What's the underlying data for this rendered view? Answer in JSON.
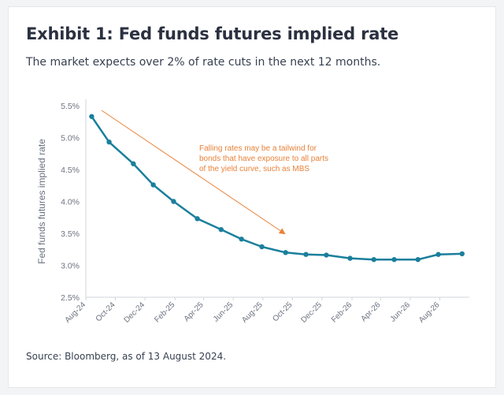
{
  "title": "Exhibit 1: Fed funds futures implied rate",
  "subtitle": "The market expects over 2% of rate cuts in the next 12 months.",
  "source": "Source: Bloomberg, as of 13 August 2024.",
  "colors": {
    "line": "#1a7f9c",
    "annotation": "#e8823a",
    "axis": "#d1d5db"
  },
  "chart_data": {
    "type": "line",
    "ylabel": "Fed funds futures implied rate",
    "ylim": [
      2.5,
      5.5
    ],
    "yticks": [
      2.5,
      3.0,
      3.5,
      4.0,
      4.5,
      5.0,
      5.5
    ],
    "ytick_labels": [
      "2.5%",
      "3.0%",
      "3.5%",
      "4.0%",
      "4.5%",
      "5.0%",
      "5.5%"
    ],
    "x_range": [
      "2024-08-01",
      "2026-10-01"
    ],
    "xticks": [
      "2024-08-01",
      "2024-10-01",
      "2024-12-01",
      "2025-02-01",
      "2025-04-01",
      "2025-06-01",
      "2025-08-01",
      "2025-10-01",
      "2025-12-01",
      "2026-02-01",
      "2026-04-01",
      "2026-06-01",
      "2026-08-01"
    ],
    "xtick_labels": [
      "Aug-24",
      "Oct-24",
      "Dec-24",
      "Feb-25",
      "Apr-25",
      "Jun-25",
      "Aug-25",
      "Oct-25",
      "Dec-25",
      "Feb-26",
      "Apr-26",
      "Jun-26",
      "Aug-26"
    ],
    "grid": false,
    "series": [
      {
        "x": [
          "2024-08-13",
          "2024-09-18",
          "2024-11-07",
          "2024-12-18",
          "2025-01-29",
          "2025-03-19",
          "2025-05-07",
          "2025-06-18",
          "2025-07-30",
          "2025-09-17",
          "2025-10-29",
          "2025-12-10",
          "2026-01-28",
          "2026-03-18",
          "2026-04-29",
          "2026-06-17",
          "2026-07-29",
          "2026-09-16"
        ],
        "values": [
          5.33,
          4.93,
          4.59,
          4.26,
          4.0,
          3.73,
          3.56,
          3.41,
          3.29,
          3.2,
          3.17,
          3.16,
          3.11,
          3.09,
          3.09,
          3.09,
          3.17,
          3.18
        ]
      }
    ],
    "annotation": "Falling rates may be a tailwind for bonds that have exposure to all parts of the yield curve, such as MBS",
    "annotation_lines": [
      "Falling rates may be a tailwind for",
      "bonds that have exposure to all parts",
      "of the yield curve, such as MBS"
    ]
  }
}
